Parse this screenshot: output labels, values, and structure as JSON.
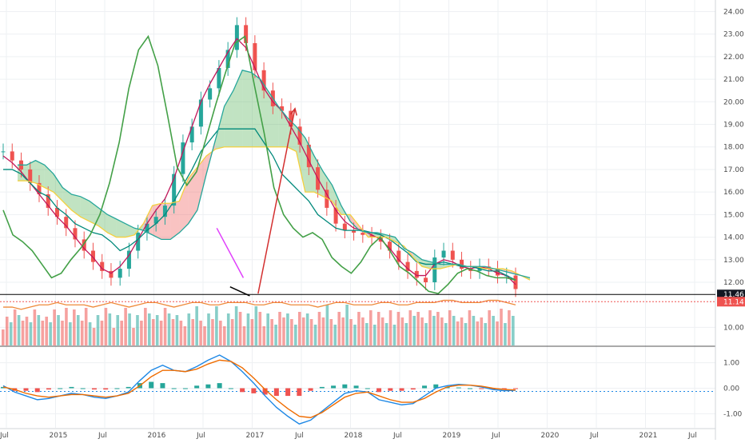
{
  "chart_data": [
    {
      "type": "candlestick",
      "title": "",
      "price_axis": {
        "ylim": [
          9.2,
          24.3
        ],
        "ticks": [
          "10.00",
          "12.00",
          "13.00",
          "14.00",
          "15.00",
          "16.00",
          "17.00",
          "18.00",
          "19.00",
          "20.00",
          "21.00",
          "22.00",
          "23.00",
          "24.00"
        ],
        "last_price": "11.46",
        "reference_price": "11.14"
      },
      "time_axis": {
        "labels": [
          "Jul",
          "2015",
          "Jul",
          "2016",
          "Jul",
          "2017",
          "Jul",
          "2018",
          "Jul",
          "2019",
          "Jul",
          "2020",
          "Jul",
          "2021",
          "Jul"
        ]
      },
      "ohlc_closes": [
        17.8,
        17.4,
        17.0,
        16.4,
        15.9,
        15.3,
        14.9,
        14.4,
        13.9,
        13.4,
        12.9,
        12.5,
        12.2,
        12.6,
        13.4,
        14.2,
        14.6,
        14.9,
        15.4,
        16.8,
        18.2,
        18.9,
        20.1,
        20.6,
        21.5,
        22.3,
        23.4,
        22.6,
        21.4,
        20.5,
        19.8,
        19.6,
        18.9,
        18.1,
        17.1,
        16.1,
        15.3,
        14.6,
        14.3,
        14.2,
        14.1,
        14.0,
        13.8,
        13.4,
        12.9,
        12.5,
        12.2,
        12.0,
        13.1,
        13.4,
        13.0,
        12.6,
        12.5,
        12.7,
        12.6,
        12.3,
        12.3,
        11.7
      ],
      "series": [
        {
          "name": "",
          "role": "tenkan",
          "values": [
            17.6,
            17.3,
            16.9,
            16.4,
            15.9,
            15.4,
            14.9,
            14.5,
            14.0,
            13.5,
            13.1,
            12.6,
            12.4,
            12.7,
            13.2,
            13.9,
            14.6,
            15.2,
            15.7,
            16.6,
            17.8,
            18.9,
            20.0,
            20.8,
            21.5,
            22.2,
            22.8,
            22.4,
            21.5,
            20.6,
            20.0,
            19.6,
            18.9,
            18.2,
            17.4,
            16.6,
            15.9,
            15.2,
            14.7,
            14.4,
            14.3,
            14.1,
            13.9,
            13.5,
            13.0,
            12.6,
            12.3,
            12.3,
            12.8,
            13.0,
            12.9,
            12.7,
            12.6,
            12.7,
            12.6,
            12.4,
            12.3,
            11.9
          ],
          "color": "#c2185b"
        },
        {
          "name": "",
          "role": "kijun",
          "values": [
            17.0,
            17.0,
            16.8,
            16.4,
            16.0,
            15.8,
            15.3,
            15.0,
            14.6,
            14.4,
            14.2,
            14.1,
            13.8,
            13.4,
            13.6,
            13.9,
            14.3,
            14.6,
            15.0,
            15.6,
            16.3,
            17.0,
            17.8,
            18.3,
            18.8,
            18.8,
            18.8,
            18.8,
            18.8,
            18.2,
            17.6,
            16.8,
            16.4,
            16.0,
            15.6,
            15.0,
            14.7,
            14.4,
            14.3,
            14.3,
            14.3,
            14.2,
            14.1,
            13.9,
            13.6,
            13.3,
            12.9,
            12.8,
            12.8,
            12.9,
            12.8,
            12.7,
            12.7,
            12.6,
            12.5,
            12.5,
            12.3,
            12.1
          ],
          "color": "#00897b"
        },
        {
          "name": "",
          "role": "base-line",
          "values": [
            16.5,
            16.5,
            16.4,
            16.2,
            16.0,
            15.6,
            15.2,
            14.9,
            14.7,
            14.5,
            14.2,
            14.0,
            14.0,
            14.1,
            14.6,
            15.4,
            15.5,
            15.5,
            15.6,
            16.6,
            17.1,
            17.6,
            17.9,
            18.0,
            18.0,
            18.0,
            18.0,
            18.0,
            18.0,
            18.0,
            18.0,
            17.8,
            16.0,
            16.0,
            15.8,
            15.6,
            15.0,
            15.0,
            14.5,
            14.0,
            14.0,
            14.0,
            13.8,
            13.6,
            13.1,
            12.7,
            12.6,
            12.6,
            12.7,
            12.8,
            12.7,
            12.7,
            12.6,
            12.6,
            12.6,
            12.5,
            12.3,
            12.1
          ],
          "color": "#f4d03f"
        },
        {
          "name": "",
          "role": "chikou",
          "values": [
            15.2,
            14.1,
            13.8,
            13.4,
            12.8,
            12.2,
            12.4,
            13.0,
            13.5,
            14.1,
            15.0,
            16.4,
            18.2,
            20.6,
            22.3,
            22.9,
            21.6,
            19.4,
            17.1,
            16.3,
            16.9,
            18.4,
            19.9,
            21.3,
            22.6,
            22.9,
            20.7,
            18.6,
            16.2,
            15.0,
            14.4,
            14.0,
            14.2,
            13.9,
            13.1,
            12.7,
            12.4,
            12.9,
            13.6,
            14.0,
            13.4,
            12.7,
            12.4,
            12.0,
            11.6,
            11.5,
            11.9,
            12.4,
            12.6,
            12.5,
            12.3,
            12.2,
            12.2,
            12.1
          ],
          "color": "#43a047"
        },
        {
          "name": "",
          "role": "cloud-edge",
          "values": [
            17.2,
            17.2,
            17.4,
            17.2,
            16.8,
            16.2,
            15.9,
            15.8,
            15.6,
            15.3,
            15.0,
            14.8,
            14.6,
            14.4,
            14.3,
            14.1,
            13.9,
            13.9,
            14.2,
            14.6,
            15.2,
            16.8,
            18.3,
            19.8,
            20.5,
            21.4,
            21.3,
            21.0,
            20.4,
            19.8,
            19.3,
            18.9,
            18.4,
            17.6,
            16.9,
            16.3,
            15.4,
            14.7,
            14.3,
            14.2,
            14.2,
            14.1,
            14.0,
            13.5,
            13.3,
            13.0,
            12.9,
            12.8,
            12.8,
            12.8,
            12.7,
            12.7,
            12.7,
            12.6,
            12.5,
            12.4,
            12.3,
            12.2
          ],
          "color": "#26a69a"
        },
        {
          "name": "",
          "role": "volume-ma",
          "values": [
            10.9,
            10.9,
            10.8,
            10.9,
            11.0,
            11.0,
            11.1,
            11.0,
            11.0,
            11.0,
            10.9,
            11.0,
            11.1,
            11.0,
            10.9,
            11.0,
            11.1,
            11.1,
            11.0,
            10.9,
            11.0,
            11.1,
            11.1,
            11.0,
            11.0,
            11.1,
            11.1,
            11.1,
            11.0,
            11.0,
            11.1,
            11.1,
            11.0,
            11.0,
            11.0,
            10.9,
            11.0,
            11.1,
            11.1,
            11.0,
            11.0,
            11.0,
            11.1,
            11.1,
            11.0,
            11.0,
            11.1,
            11.1,
            11.1,
            11.2,
            11.2,
            11.1,
            11.1,
            11.1,
            11.2,
            11.2,
            11.1,
            11.0
          ],
          "color": "#ef8a3a"
        }
      ],
      "annotations": [
        {
          "kind": "trend-line",
          "color": "#e040fb",
          "from": [
            4.28,
            14.4
          ],
          "to": [
            4.82,
            12.2
          ]
        },
        {
          "kind": "trend-line",
          "color": "#000000",
          "from": [
            4.55,
            11.8
          ],
          "to": [
            4.95,
            11.4
          ]
        },
        {
          "kind": "arrow",
          "color": "#d32f2f",
          "from": [
            5.12,
            11.5
          ],
          "to": [
            5.87,
            19.7
          ]
        }
      ]
    },
    {
      "type": "macd",
      "ylim": [
        -1.55,
        1.55
      ],
      "ticks": [
        "1.00",
        "0.00",
        "-1.00"
      ],
      "series": [
        {
          "name": "",
          "role": "macd",
          "values": [
            0.1,
            -0.15,
            -0.3,
            -0.45,
            -0.4,
            -0.3,
            -0.2,
            -0.25,
            -0.35,
            -0.4,
            -0.3,
            -0.15,
            0.3,
            0.7,
            0.9,
            0.7,
            0.65,
            0.85,
            1.1,
            1.3,
            1.05,
            0.65,
            0.2,
            -0.3,
            -0.75,
            -1.1,
            -1.4,
            -1.25,
            -0.9,
            -0.55,
            -0.2,
            -0.1,
            -0.15,
            -0.45,
            -0.55,
            -0.65,
            -0.6,
            -0.3,
            0.0,
            0.1,
            0.15,
            0.12,
            0.05,
            -0.05,
            -0.1,
            -0.08
          ],
          "color": "#1e88e5"
        },
        {
          "name": "",
          "role": "signal",
          "values": [
            0.05,
            -0.05,
            -0.2,
            -0.3,
            -0.35,
            -0.3,
            -0.25,
            -0.25,
            -0.3,
            -0.35,
            -0.3,
            -0.2,
            0.1,
            0.45,
            0.7,
            0.7,
            0.65,
            0.75,
            0.95,
            1.1,
            1.05,
            0.8,
            0.4,
            -0.05,
            -0.45,
            -0.8,
            -1.1,
            -1.15,
            -0.95,
            -0.65,
            -0.35,
            -0.2,
            -0.15,
            -0.3,
            -0.45,
            -0.55,
            -0.55,
            -0.4,
            -0.15,
            0.05,
            0.12,
            0.12,
            0.08,
            0.0,
            -0.05,
            -0.07
          ],
          "color": "#ef6c00"
        }
      ],
      "histogram_color_up": "#26a69a",
      "histogram_color_down": "#ef5350"
    }
  ]
}
